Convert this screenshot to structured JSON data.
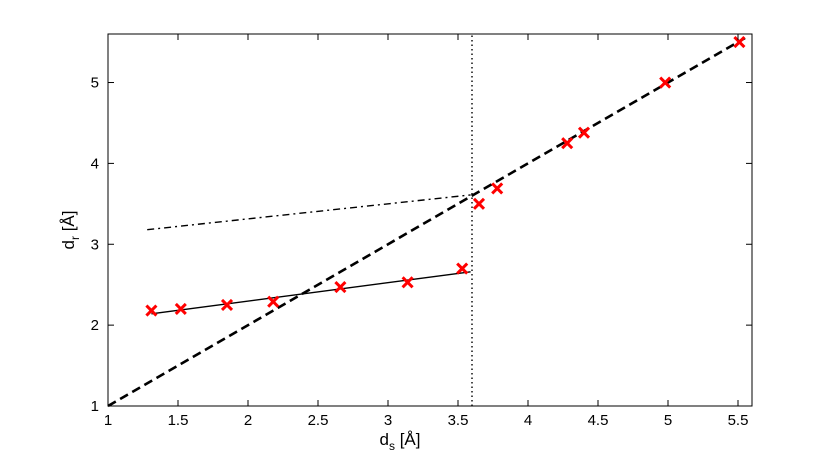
{
  "chart_data": {
    "type": "scatter",
    "title": "",
    "xlim": [
      1,
      5.6
    ],
    "ylim": [
      1,
      5.6
    ],
    "xticks": [
      {
        "value": 1,
        "label": "1"
      },
      {
        "value": 1.5,
        "label": "1.5"
      },
      {
        "value": 2,
        "label": "2"
      },
      {
        "value": 2.5,
        "label": "2.5"
      },
      {
        "value": 3,
        "label": "3"
      },
      {
        "value": 3.5,
        "label": "3.5"
      },
      {
        "value": 4,
        "label": "4"
      },
      {
        "value": 4.5,
        "label": "4.5"
      },
      {
        "value": 5,
        "label": "5"
      },
      {
        "value": 5.5,
        "label": "5.5"
      }
    ],
    "yticks": [
      {
        "value": 1,
        "label": "1"
      },
      {
        "value": 2,
        "label": "2"
      },
      {
        "value": 3,
        "label": "3"
      },
      {
        "value": 4,
        "label": "4"
      },
      {
        "value": 5,
        "label": "5"
      }
    ],
    "xlabel": {
      "main": "d",
      "sub": "s",
      "unit": " [Å]"
    },
    "ylabel": {
      "main": "d",
      "sub": "r",
      "unit": " [Å]"
    },
    "grid": false,
    "legend": "none",
    "points": [
      {
        "x": 1.31,
        "y": 2.18
      },
      {
        "x": 1.52,
        "y": 2.2
      },
      {
        "x": 1.85,
        "y": 2.25
      },
      {
        "x": 2.18,
        "y": 2.29
      },
      {
        "x": 2.66,
        "y": 2.47
      },
      {
        "x": 3.14,
        "y": 2.53
      },
      {
        "x": 3.53,
        "y": 2.7
      },
      {
        "x": 3.65,
        "y": 3.5
      },
      {
        "x": 3.78,
        "y": 3.69
      },
      {
        "x": 4.28,
        "y": 4.25
      },
      {
        "x": 4.4,
        "y": 4.38
      },
      {
        "x": 4.98,
        "y": 5.0
      },
      {
        "x": 5.51,
        "y": 5.5
      }
    ],
    "lines": [
      {
        "style": "solid",
        "x": [
          1.31,
          3.59
        ],
        "y": [
          2.14,
          2.66
        ]
      },
      {
        "style": "dashdot",
        "x": [
          1.28,
          3.59
        ],
        "y": [
          3.18,
          3.61
        ]
      },
      {
        "style": "dashed",
        "x": [
          1.0,
          5.55
        ],
        "y": [
          1.0,
          5.55
        ]
      },
      {
        "style": "dotted",
        "x": [
          3.6,
          3.6
        ],
        "y": [
          1.0,
          5.6
        ]
      }
    ],
    "colors": {
      "markers": "#ff0000",
      "lines": "#000000",
      "axes": "#000000"
    }
  }
}
